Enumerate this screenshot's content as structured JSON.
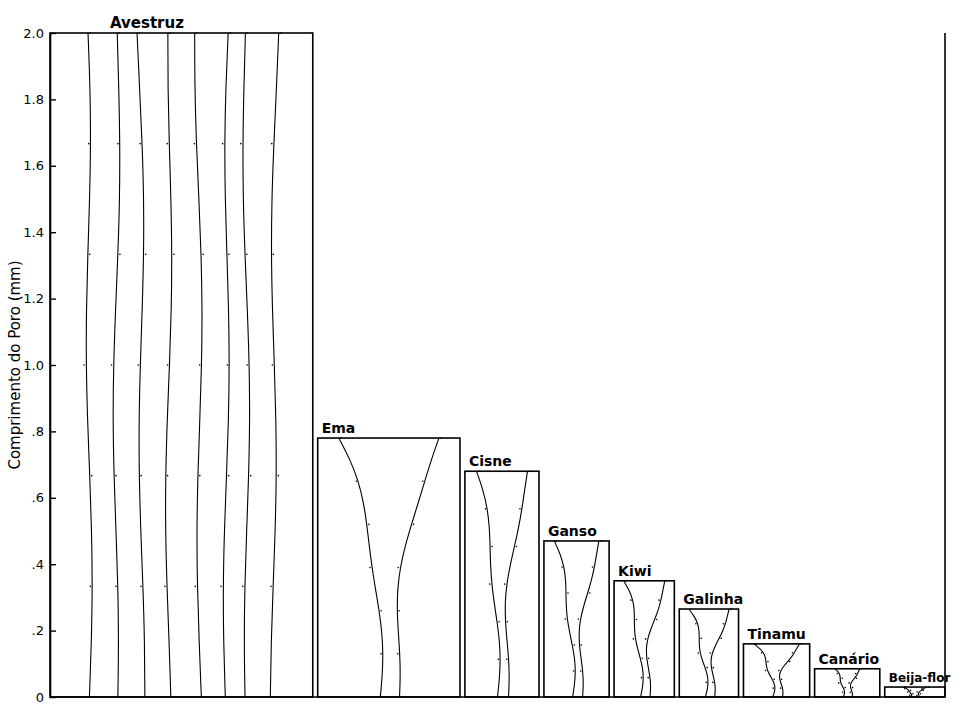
{
  "chart_data": {
    "type": "bar",
    "y_label": "Comprimento do Poro (mm)",
    "categories": [
      "Avestruz",
      "Ema",
      "Cisne",
      "Ganso",
      "Kiwi",
      "Galinha",
      "Tinamu",
      "Canário",
      "Beija-flor"
    ],
    "values": [
      2.0,
      0.78,
      0.68,
      0.47,
      0.35,
      0.265,
      0.16,
      0.085,
      0.03
    ],
    "color": "#ffffff",
    "ylim": [
      0,
      2.0
    ],
    "yticks": [
      0,
      {
        "value": 0.2,
        "label": ".2"
      },
      {
        "value": 0.4,
        "label": ".4"
      },
      {
        "value": 0.6,
        "label": ".6"
      },
      {
        "value": 0.8,
        "label": ".8"
      },
      {
        "value": 1.0,
        "label": "1.0"
      },
      1.2,
      1.4,
      1.6,
      1.8,
      {
        "value": 2.0,
        "label": "2.0"
      }
    ],
    "grid": false
  }
}
